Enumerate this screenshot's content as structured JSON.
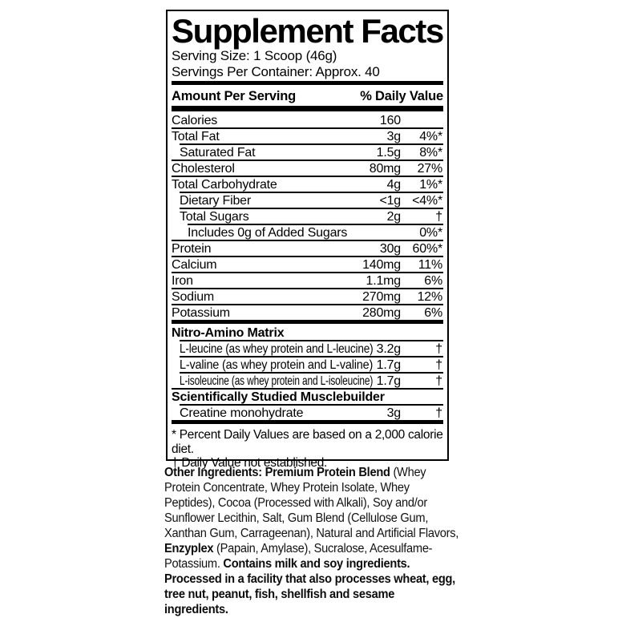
{
  "colors": {
    "background": "#ffffff",
    "panel_text": "#000000",
    "panel_border": "#000000",
    "ingredients_text": "#121212"
  },
  "label": {
    "title": "Supplement Facts",
    "serving_size": "Serving Size: 1 Scoop (46g)",
    "servings_per_container": "Servings Per Container: Approx. 40",
    "columns": {
      "amount_header": "Amount Per Serving",
      "daily_value_header": "% Daily Value"
    },
    "rows": [
      {
        "name": "Calories",
        "amount": "160",
        "dv": "",
        "indent": 0
      },
      {
        "name": "Total Fat",
        "amount": "3g",
        "dv": "4%*",
        "indent": 0
      },
      {
        "name": "Saturated Fat",
        "amount": "1.5g",
        "dv": "8%*",
        "indent": 1
      },
      {
        "name": "Cholesterol",
        "amount": "80mg",
        "dv": "27%",
        "indent": 0
      },
      {
        "name": "Total Carbohydrate",
        "amount": "4g",
        "dv": "1%*",
        "indent": 0
      },
      {
        "name": "Dietary Fiber",
        "amount": "<1g",
        "dv": "<4%*",
        "indent": 1
      },
      {
        "name": "Total Sugars",
        "amount": "2g",
        "dv": "†",
        "indent": 1
      },
      {
        "name": "Includes 0g of Added Sugars",
        "amount": "",
        "dv": "0%*",
        "indent": 2
      },
      {
        "name": "Protein",
        "amount": "30g",
        "dv": "60%*",
        "indent": 0
      },
      {
        "name": "Calcium",
        "amount": "140mg",
        "dv": "11%",
        "indent": 0
      },
      {
        "name": "Iron",
        "amount": "1.1mg",
        "dv": "6%",
        "indent": 0
      },
      {
        "name": "Sodium",
        "amount": "270mg",
        "dv": "12%",
        "indent": 0
      },
      {
        "name": "Potassium",
        "amount": "280mg",
        "dv": "6%",
        "indent": 0
      }
    ],
    "sections": [
      {
        "heading": "Nitro-Amino Matrix",
        "rows": [
          {
            "name": "L-leucine (as whey protein and L-leucine)",
            "amount": "3.2g",
            "dv": "†",
            "indent": 1
          },
          {
            "name": "L-valine (as whey protein and L-valine)",
            "amount": "1.7g",
            "dv": "†",
            "indent": 1
          },
          {
            "name": "L-isoleucine (as whey protein and L-isoleucine)",
            "amount": "1.7g",
            "dv": "†",
            "indent": 1
          }
        ]
      },
      {
        "heading": "Scientifically Studied Musclebuilder",
        "rows": [
          {
            "name": "Creatine monohydrate",
            "amount": "3g",
            "dv": "†",
            "indent": 1
          }
        ]
      }
    ],
    "footnotes": [
      "* Percent Daily Values are based on a 2,000 calorie diet.",
      "† Daily Value not established."
    ]
  },
  "other_ingredients": {
    "segments": [
      {
        "text": "Other Ingredients: Premium Protein Blend ",
        "bold": true
      },
      {
        "text": "(Whey Protein Concentrate, Whey Protein Isolate, Whey Peptides), Cocoa (Processed with Alkali), Soy and/or Sunflower Lecithin, Salt, Gum Blend (Cellulose Gum, Xanthan Gum, Carrageenan), Natural and Artificial Flavors, ",
        "bold": false
      },
      {
        "text": "Enzyplex ",
        "bold": true
      },
      {
        "text": "(Papain, Amylase), Sucralose, Acesulfame-Potassium. ",
        "bold": false
      },
      {
        "text": "Contains milk and soy ingredients. Processed in a facility that also processes wheat, egg, tree nut, peanut, fish, shellfish and sesame ingredients.",
        "bold": true
      }
    ]
  }
}
